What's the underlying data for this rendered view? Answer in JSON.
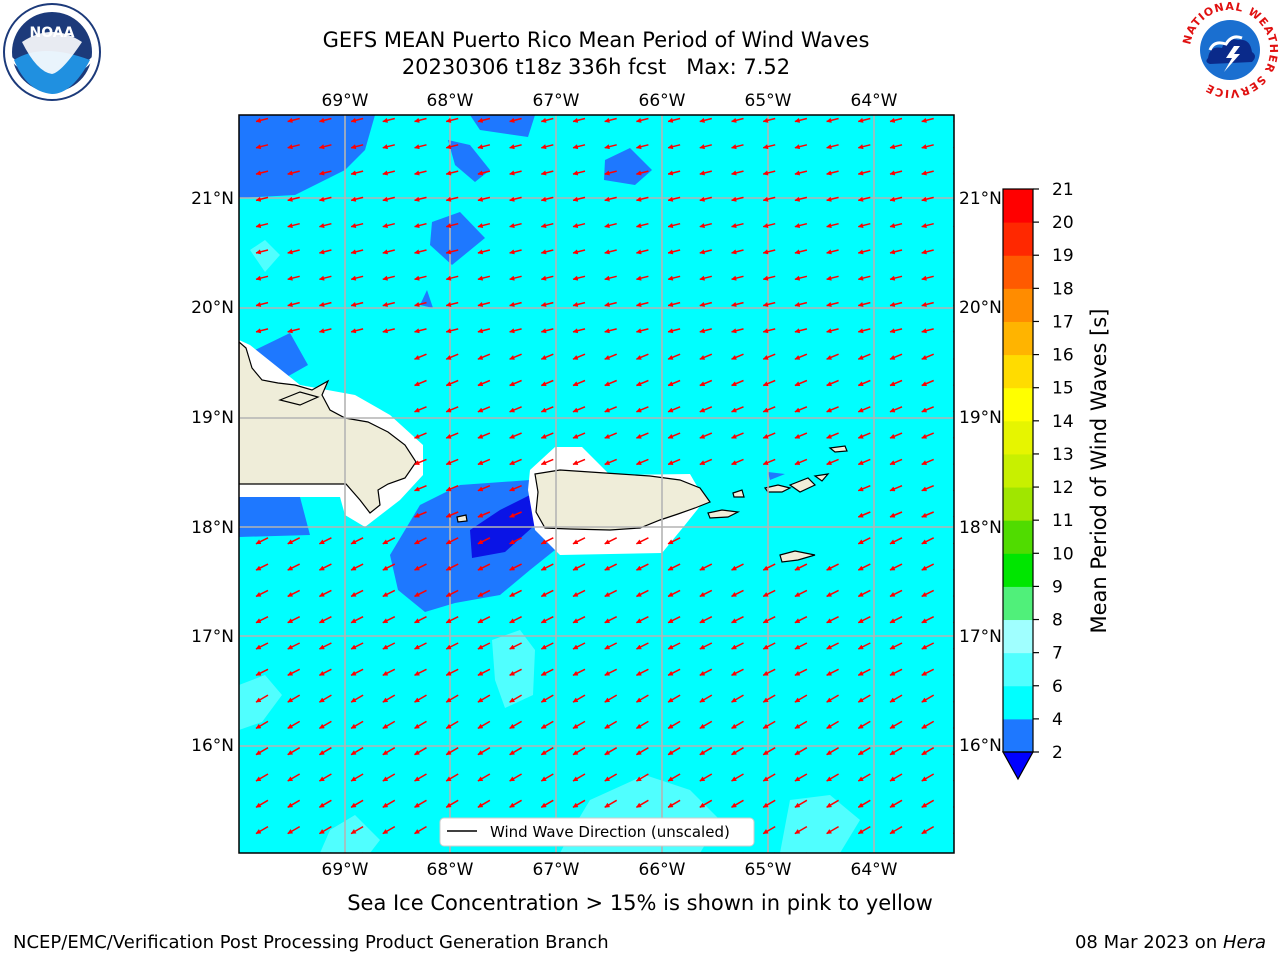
{
  "title": {
    "line1": "GEFS MEAN Puerto Rico Mean Period of Wind Waves",
    "line2": "20230306 t18z 336h fcst   Max: 7.52"
  },
  "map": {
    "lon_labels": [
      "69°W",
      "68°W",
      "67°W",
      "66°W",
      "65°W",
      "64°W"
    ],
    "lat_labels": [
      "21°N",
      "20°N",
      "19°N",
      "18°N",
      "17°N",
      "16°N"
    ],
    "legend_label": "Wind Wave Direction (unscaled)",
    "colors": {
      "ocean": "#00ffff",
      "period_2_4": "#1e78ff",
      "period_below_2": "#0a14e6",
      "period_6_7": "#50ffff",
      "land": "#efedd9",
      "arrow": "#ff0000",
      "grid": "#b4b4b4"
    }
  },
  "colorbar": {
    "label": "Mean Period of Wind Waves [s]",
    "ticks": [
      "2",
      "4",
      "6",
      "7",
      "8",
      "9",
      "10",
      "11",
      "12",
      "13",
      "14",
      "15",
      "16",
      "17",
      "18",
      "19",
      "20",
      "21"
    ],
    "colors": [
      "#1e78ff",
      "#00ffff",
      "#50ffff",
      "#a0ffff",
      "#50f07a",
      "#00e600",
      "#50dc00",
      "#a0e600",
      "#c8f000",
      "#e6f500",
      "#ffff00",
      "#ffdc00",
      "#ffb400",
      "#ff8c00",
      "#ff5a00",
      "#ff2800",
      "#ff0000"
    ],
    "under_color": "#0000ff"
  },
  "sea_ice_note": "Sea Ice Concentration > 15% is shown in pink to yellow",
  "footer": {
    "left": "NCEP/EMC/Verification Post Processing Product Generation Branch",
    "date": "08 Mar 2023 on ",
    "machine": "Hera"
  },
  "logos": {
    "noaa": "NOAA",
    "nws_ring": "NATIONAL WEATHER SERVICE"
  }
}
